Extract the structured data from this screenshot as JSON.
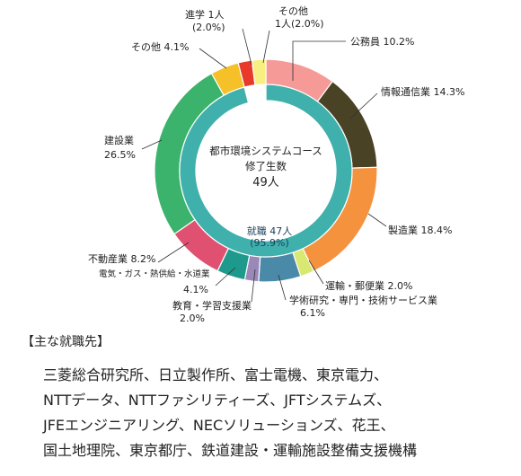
{
  "chart_data": {
    "type": "pie",
    "center": {
      "line1": "都市環境システムコース",
      "line2": "修了生数",
      "line3": "49人"
    },
    "inner_ring": {
      "label_line1": "就職 47人",
      "label_line2": "(95.9%)",
      "segments": [
        {
          "name": "就職",
          "value": 95.9,
          "color": "#3fb0ac"
        },
        {
          "name": "進学",
          "value": 2.0,
          "color": "#ffffff"
        },
        {
          "name": "その他",
          "value": 2.0,
          "color": "#ffffff"
        }
      ]
    },
    "outer_ring": [
      {
        "label": "公務員 10.2%",
        "value": 10.2,
        "color": "#f59a96"
      },
      {
        "label": "情報通信業 14.3%",
        "value": 14.3,
        "color": "#4a4224"
      },
      {
        "label": "製造業 18.4%",
        "value": 18.4,
        "color": "#f5923e"
      },
      {
        "label": "運輸・郵便業 2.0%",
        "value": 2.0,
        "color": "#d8e870"
      },
      {
        "label": "学術研究・専門・技術サービス業 6.1%",
        "value": 6.1,
        "color": "#4a8aa8"
      },
      {
        "label": "教育・学習支援業 2.0%",
        "value": 2.0,
        "color": "#9a88b8"
      },
      {
        "label": "電気・ガス・熱供給・水道業 4.1%",
        "value": 4.1,
        "color": "#1e9a8c"
      },
      {
        "label": "不動産業 8.2%",
        "value": 8.2,
        "color": "#e05070"
      },
      {
        "label": "建設業 26.5%",
        "value": 26.5,
        "color": "#3cb36c"
      },
      {
        "label": "その他 4.1%",
        "value": 4.1,
        "color": "#f5c028"
      },
      {
        "label": "進学 1人 (2.0%)",
        "value": 2.0,
        "color": "#e83a2a"
      },
      {
        "label": "その他 1人(2.0%)",
        "value": 2.0,
        "color": "#f7f080"
      }
    ],
    "labels": {
      "komuin": "公務員 10.2%",
      "joho": "情報通信業 14.3%",
      "seizo": "製造業 18.4%",
      "unyu": "運輸・郵便業 2.0%",
      "gakujutsu_1": "学術研究・専門・技術サービス業",
      "gakujutsu_2": "6.1%",
      "kyoiku_1": "教育・学習支援業",
      "kyoiku_2": "2.0%",
      "denki_1": "電気・ガス・熱供給・水道業",
      "denki_2": "4.1%",
      "fudosan": "不動産業 8.2%",
      "kensetsu_1": "建設業",
      "kensetsu_2": "26.5%",
      "sonota": "その他 4.1%",
      "shingaku_1": "進学 1人",
      "shingaku_2": "(2.0%)",
      "other_1": "その他",
      "other_2": "1人(2.0%)"
    }
  },
  "employers": {
    "title": "【主な就職先】",
    "lines": [
      "三菱総合研究所、日立製作所、富士電機、東京電力、",
      "NTTデータ、NTTファシリティーズ、JFTシステムズ、",
      "JFEエンジニアリング、NECソリューションズ、花王、",
      "国土地理院、東京都庁、鉄道建設・運輸施設整備支援機構"
    ]
  }
}
